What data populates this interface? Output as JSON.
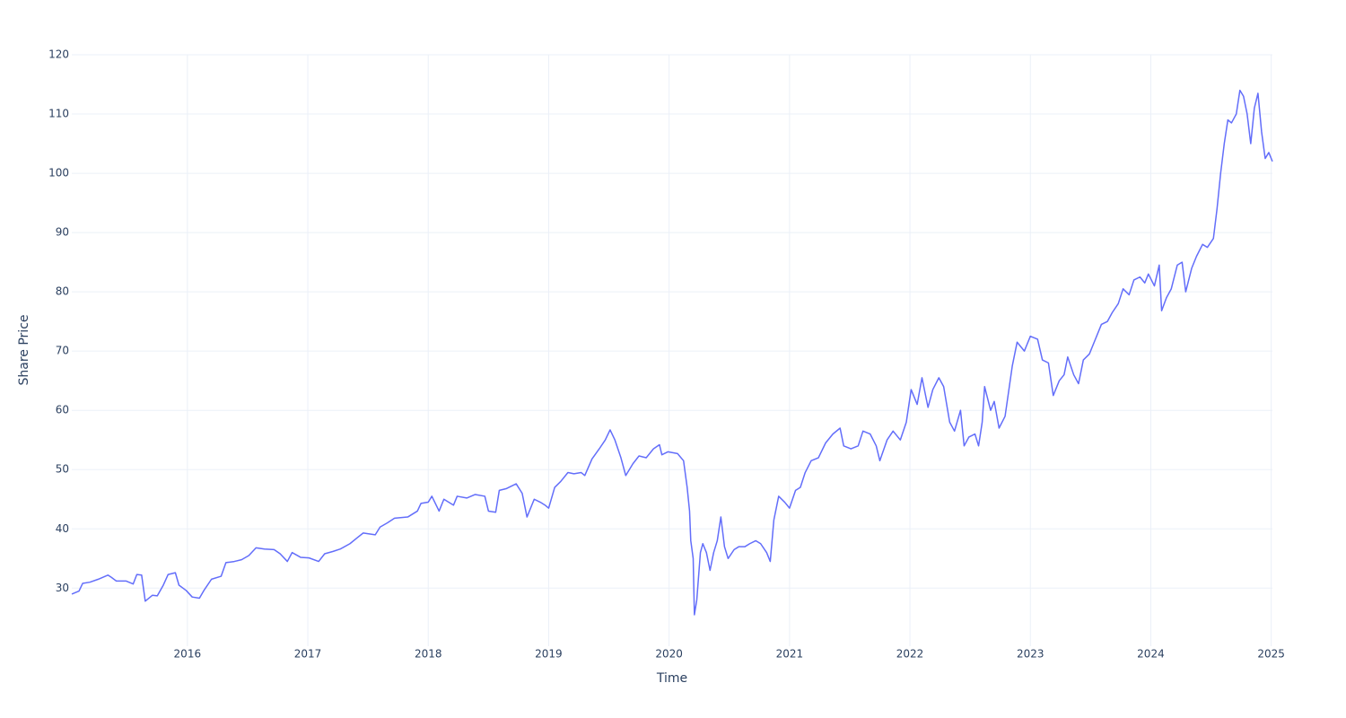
{
  "chart_data": {
    "type": "line",
    "x_label": "Time",
    "y_label": "Share Price",
    "x": [
      2015.04,
      2015.1,
      2015.13,
      2015.19,
      2015.26,
      2015.34,
      2015.37,
      2015.41,
      2015.49,
      2015.55,
      2015.58,
      2015.62,
      2015.65,
      2015.71,
      2015.75,
      2015.8,
      2015.84,
      2015.9,
      2015.93,
      2015.99,
      2016.04,
      2016.1,
      2016.14,
      2016.2,
      2016.28,
      2016.32,
      2016.39,
      2016.45,
      2016.51,
      2016.57,
      2016.64,
      2016.72,
      2016.77,
      2016.83,
      2016.87,
      2016.94,
      2017.01,
      2017.09,
      2017.14,
      2017.21,
      2017.27,
      2017.35,
      2017.41,
      2017.46,
      2017.56,
      2017.6,
      2017.66,
      2017.72,
      2017.83,
      2017.91,
      2017.94,
      2018.0,
      2018.03,
      2018.09,
      2018.13,
      2018.21,
      2018.24,
      2018.32,
      2018.39,
      2018.47,
      2018.5,
      2018.56,
      2018.59,
      2018.65,
      2018.73,
      2018.78,
      2018.82,
      2018.88,
      2018.93,
      2018.97,
      2019.0,
      2019.05,
      2019.1,
      2019.16,
      2019.21,
      2019.27,
      2019.3,
      2019.36,
      2019.42,
      2019.47,
      2019.51,
      2019.55,
      2019.6,
      2019.64,
      2019.7,
      2019.75,
      2019.81,
      2019.87,
      2019.92,
      2019.94,
      2019.99,
      2020.07,
      2020.12,
      2020.15,
      2020.17,
      2020.18,
      2020.2,
      2020.21,
      2020.23,
      2020.26,
      2020.28,
      2020.31,
      2020.34,
      2020.37,
      2020.4,
      2020.43,
      2020.46,
      2020.49,
      2020.54,
      2020.58,
      2020.63,
      2020.67,
      2020.72,
      2020.76,
      2020.81,
      2020.84,
      2020.87,
      2020.91,
      2020.96,
      2021.0,
      2021.05,
      2021.09,
      2021.13,
      2021.18,
      2021.24,
      2021.3,
      2021.36,
      2021.42,
      2021.45,
      2021.51,
      2021.57,
      2021.61,
      2021.67,
      2021.72,
      2021.75,
      2021.81,
      2021.86,
      2021.92,
      2021.97,
      2022.01,
      2022.06,
      2022.1,
      2022.15,
      2022.19,
      2022.24,
      2022.28,
      2022.33,
      2022.37,
      2022.42,
      2022.45,
      2022.49,
      2022.54,
      2022.57,
      2022.6,
      2022.62,
      2022.67,
      2022.7,
      2022.74,
      2022.79,
      2022.85,
      2022.89,
      2022.95,
      2023.0,
      2023.06,
      2023.1,
      2023.15,
      2023.19,
      2023.24,
      2023.28,
      2023.31,
      2023.36,
      2023.4,
      2023.44,
      2023.49,
      2023.53,
      2023.59,
      2023.64,
      2023.68,
      2023.73,
      2023.77,
      2023.82,
      2023.86,
      2023.91,
      2023.95,
      2023.98,
      2024.03,
      2024.07,
      2024.09,
      2024.13,
      2024.17,
      2024.22,
      2024.26,
      2024.29,
      2024.34,
      2024.38,
      2024.43,
      2024.47,
      2024.52,
      2024.55,
      2024.58,
      2024.61,
      2024.64,
      2024.67,
      2024.71,
      2024.74,
      2024.77,
      2024.8,
      2024.83,
      2024.86,
      2024.89,
      2024.92,
      2024.95,
      2024.98,
      2025.01
    ],
    "values": [
      29,
      29.5,
      30.8,
      31,
      31.5,
      32.2,
      31.8,
      31.2,
      31.2,
      30.7,
      32.3,
      32.2,
      27.8,
      28.8,
      28.7,
      30.5,
      32.3,
      32.6,
      30.5,
      29.6,
      28.5,
      28.3,
      29.7,
      31.5,
      32,
      34.3,
      34.5,
      34.8,
      35.5,
      36.8,
      36.6,
      36.5,
      35.8,
      34.5,
      36,
      35.2,
      35.1,
      34.5,
      35.8,
      36.2,
      36.6,
      37.5,
      38.5,
      39.3,
      39,
      40.3,
      41,
      41.8,
      42,
      43,
      44.3,
      44.5,
      45.5,
      43,
      45,
      44,
      45.5,
      45.2,
      45.8,
      45.5,
      43,
      42.8,
      46.5,
      46.8,
      47.6,
      46,
      42,
      45,
      44.5,
      44,
      43.5,
      47,
      48,
      49.5,
      49.3,
      49.5,
      49,
      51.8,
      53.5,
      55,
      56.7,
      55,
      52,
      49,
      51,
      52.3,
      52,
      53.5,
      54.2,
      52.5,
      53,
      52.7,
      51.5,
      47,
      43,
      38,
      35,
      25.5,
      28,
      36,
      37.5,
      36,
      33,
      36,
      38,
      42,
      37,
      35,
      36.5,
      37,
      37,
      37.5,
      38,
      37.5,
      36,
      34.5,
      41.5,
      45.5,
      44.5,
      43.5,
      46.5,
      47,
      49.5,
      51.5,
      52,
      54.5,
      56,
      57,
      54,
      53.5,
      54,
      56.5,
      56,
      54,
      51.5,
      55,
      56.5,
      55,
      58,
      63.5,
      61,
      65.5,
      60.5,
      63.5,
      65.5,
      64,
      58,
      56.5,
      60,
      54,
      55.5,
      56,
      54,
      58,
      64,
      60,
      61.5,
      57,
      59,
      67.5,
      71.5,
      70,
      72.5,
      72,
      68.5,
      68,
      62.5,
      65,
      66,
      69,
      66,
      64.5,
      68.5,
      69.5,
      71.5,
      74.5,
      75,
      76.5,
      78,
      80.5,
      79.5,
      82,
      82.5,
      81.5,
      83,
      81,
      84.5,
      76.8,
      79,
      80.5,
      84.5,
      85,
      80,
      84,
      86,
      88,
      87.5,
      89,
      94,
      100,
      105,
      109,
      108.5,
      110,
      114,
      113,
      110,
      105,
      111,
      113.5,
      107,
      102.5,
      103.5,
      102
    ],
    "color": "#636efa",
    "xlim": [
      2015.04,
      2025.01
    ],
    "xticks": [
      2016,
      2017,
      2018,
      2019,
      2020,
      2021,
      2022,
      2023,
      2024,
      2025
    ],
    "ylim": [
      20.2,
      120
    ],
    "yticks": [
      30,
      40,
      50,
      60,
      70,
      80,
      90,
      100,
      110,
      120
    ],
    "grid": true
  }
}
